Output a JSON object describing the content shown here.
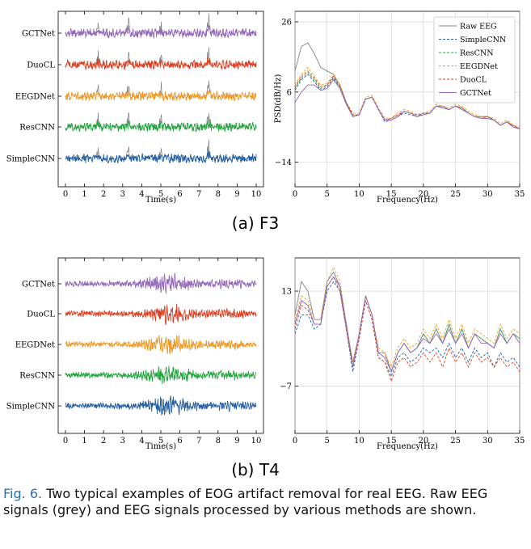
{
  "colors": {
    "raw": "#808080",
    "SimpleCNN": "#1f5fa8",
    "ResCNN": "#1fa83c",
    "EEGDNet": "#f59a1c",
    "DuoCL": "#e53a1c",
    "GCTNet": "#9467bd"
  },
  "panels": [
    {
      "label": "(a) F3",
      "time_plot": {
        "xlabel": "Time(s)",
        "xticks": [
          "0",
          "1",
          "2",
          "3",
          "4",
          "5",
          "6",
          "7",
          "8",
          "9",
          "10"
        ],
        "traces": [
          "GCTNet",
          "DuoCL",
          "EEGDNet",
          "ResCNN",
          "SimpleCNN"
        ],
        "artifact_times": [
          1.7,
          3.3,
          5.0,
          7.5
        ]
      },
      "psd_plot": {
        "xlabel": "Frequency(Hz)",
        "ylabel": "PSD(dB/Hz)",
        "xticks": [
          "0",
          "5",
          "10",
          "15",
          "20",
          "25",
          "30",
          "35"
        ],
        "yticks": [
          "-14",
          "6",
          "26"
        ],
        "xlim": [
          0,
          35
        ],
        "ylim": [
          -21,
          29
        ],
        "legend": [
          "Raw EEG",
          "SimpleCNN",
          "ResCNN",
          "EEGDNet",
          "DuoCL",
          "GCTNet"
        ],
        "freq": [
          0,
          1,
          2,
          3,
          4,
          5,
          6,
          7,
          8,
          9,
          10,
          11,
          12,
          13,
          14,
          15,
          16,
          17,
          18,
          19,
          20,
          21,
          22,
          23,
          24,
          25,
          26,
          27,
          28,
          29,
          30,
          31,
          32,
          33,
          34,
          35
        ],
        "series": [
          {
            "name": "Raw EEG",
            "values": [
              12,
              19,
              20,
              17,
              13,
              12,
              11,
              8,
              3,
              -1,
              -0.5,
              4,
              4.5,
              1,
              -2,
              -2,
              -1,
              0.5,
              0,
              -1,
              0,
              0,
              2,
              2,
              1,
              2,
              1.5,
              0,
              -1,
              -1.5,
              -1,
              -2,
              -3.5,
              -2.5,
              -4,
              -4.5
            ]
          },
          {
            "name": "SimpleCNN",
            "values": [
              6.5,
              9.5,
              11,
              9,
              6.5,
              7.5,
              10,
              7,
              2.5,
              -1,
              -0.5,
              4,
              4.5,
              1,
              -2.5,
              -2,
              -1,
              0,
              -0.5,
              -1,
              -0.5,
              0,
              2,
              1.5,
              1,
              2,
              1,
              0,
              -1,
              -1.5,
              -1.5,
              -2,
              -3.5,
              -2.5,
              -4,
              -4.5
            ]
          },
          {
            "name": "ResCNN",
            "values": [
              7,
              10,
              11.5,
              9.5,
              7,
              8,
              10.5,
              7.5,
              3,
              -0.5,
              -0.5,
              4,
              4.5,
              1,
              -2,
              -1.5,
              -0.5,
              0.5,
              0,
              -1,
              -0.5,
              0,
              2,
              1.5,
              1,
              2,
              1.5,
              0,
              -1,
              -1,
              -1,
              -2,
              -3.5,
              -2.5,
              -3.5,
              -4.5
            ]
          },
          {
            "name": "EEGDNet",
            "values": [
              8,
              11,
              13,
              10.5,
              8,
              8.5,
              11,
              8,
              3,
              0,
              0,
              4.5,
              5,
              1.5,
              -1.5,
              -1.5,
              0,
              1,
              0.5,
              -0.5,
              0,
              0.5,
              2.5,
              2,
              1.5,
              2.5,
              2,
              0.5,
              -0.5,
              -1,
              -1,
              -1.5,
              -3,
              -2,
              -3.5,
              -4
            ]
          },
          {
            "name": "DuoCL",
            "values": [
              7.5,
              10.5,
              12,
              10,
              7.5,
              8,
              10.5,
              7.5,
              3,
              -0.5,
              -0.5,
              4,
              4.5,
              1,
              -2,
              -1.5,
              -0.5,
              0.5,
              0,
              -0.5,
              0,
              0,
              2,
              1.5,
              1,
              2,
              1.5,
              0,
              -1,
              -1,
              -1,
              -2,
              -3.5,
              -2.5,
              -3.5,
              -4.5
            ]
          },
          {
            "name": "GCTNet",
            "values": [
              3,
              6,
              8,
              8,
              6.5,
              7,
              9.5,
              7,
              2.5,
              -1,
              -0.5,
              4,
              4.5,
              1,
              -2,
              -2,
              -1,
              0.5,
              0,
              -1,
              -0.5,
              0,
              2,
              1.5,
              1,
              2,
              1,
              0,
              -1,
              -1.5,
              -1.5,
              -2,
              -3.5,
              -2.5,
              -4,
              -4.5
            ]
          }
        ]
      }
    },
    {
      "label": "(b) T4",
      "time_plot": {
        "xlabel": "Time(s)",
        "xticks": [
          "0",
          "1",
          "2",
          "3",
          "4",
          "5",
          "6",
          "7",
          "8",
          "9",
          "10"
        ],
        "traces": [
          "GCTNet",
          "DuoCL",
          "EEGDNet",
          "ResCNN",
          "SimpleCNN"
        ],
        "burst_center": 5.4
      },
      "psd_plot": {
        "xlabel": "Frequency(Hz)",
        "ylabel": "",
        "xticks": [
          "0",
          "5",
          "10",
          "15",
          "20",
          "25",
          "30",
          "35"
        ],
        "yticks": [
          "-7",
          "13"
        ],
        "xlim": [
          0,
          35
        ],
        "ylim": [
          -17,
          20
        ],
        "legend": [],
        "freq": [
          0,
          1,
          2,
          3,
          4,
          5,
          6,
          7,
          8,
          9,
          10,
          11,
          12,
          13,
          14,
          15,
          16,
          17,
          18,
          19,
          20,
          21,
          22,
          23,
          24,
          25,
          26,
          27,
          28,
          29,
          30,
          31,
          32,
          33,
          34,
          35
        ],
        "series": [
          {
            "name": "Raw EEG",
            "values": [
              8,
              15,
              13,
              7,
              7,
              15,
              17,
              14,
              6,
              -2,
              4,
              12,
              8,
              0,
              0,
              -4,
              0,
              2,
              0,
              1,
              4,
              2,
              5,
              2,
              6,
              2,
              5,
              1,
              4,
              3,
              2,
              1,
              5,
              2,
              4,
              3
            ]
          },
          {
            "name": "SimpleCNN",
            "values": [
              4,
              8,
              8,
              5,
              6,
              13,
              15,
              13,
              5,
              -4,
              3,
              11,
              7,
              -1,
              -2,
              -5,
              -1,
              0,
              -2,
              -1,
              1,
              0,
              1,
              -1,
              2,
              -1,
              1,
              -2,
              1,
              -1,
              0,
              -3,
              0,
              -2,
              -1,
              -3
            ]
          },
          {
            "name": "ResCNN",
            "values": [
              6,
              11,
              10,
              6,
              6,
              14,
              16,
              14,
              6,
              -3,
              4,
              12,
              8,
              0,
              -1,
              -4,
              0,
              2,
              0,
              1,
              4,
              2,
              5,
              2,
              6,
              2,
              5,
              1,
              4,
              3,
              2,
              1,
              5,
              2,
              4,
              3
            ]
          },
          {
            "name": "EEGDNet",
            "values": [
              7,
              12,
              11,
              7,
              7,
              15,
              18,
              15,
              6,
              -2,
              4,
              12,
              8,
              1,
              0,
              -3,
              1,
              3,
              1,
              2,
              5,
              3,
              6,
              3,
              7,
              3,
              6,
              2,
              5,
              4,
              3,
              2,
              6,
              3,
              5,
              4
            ]
          },
          {
            "name": "DuoCL",
            "values": [
              5,
              10,
              9,
              6,
              6,
              14,
              16,
              13,
              5,
              -3,
              3,
              11,
              7,
              -1,
              -2,
              -6,
              -2,
              -1,
              -3,
              -2,
              0,
              -2,
              0,
              -3,
              1,
              -2,
              0,
              -3,
              0,
              -2,
              -1,
              -3,
              -1,
              -3,
              -2,
              -4
            ]
          },
          {
            "name": "GCTNet",
            "values": [
              6,
              11,
              10,
              6,
              6,
              14,
              16,
              14,
              6,
              -3,
              4,
              12,
              8,
              0,
              -1,
              -4,
              0,
              2,
              0,
              1,
              3,
              2,
              4,
              2,
              5,
              2,
              4,
              1,
              4,
              2,
              2,
              1,
              4,
              2,
              4,
              2
            ]
          }
        ]
      }
    }
  ],
  "caption": {
    "fig_ref": "Fig. 6.",
    "text": " Two typical examples of EOG artifact removal for real EEG. Raw EEG signals (grey) and EEG signals processed by various methods are shown."
  }
}
